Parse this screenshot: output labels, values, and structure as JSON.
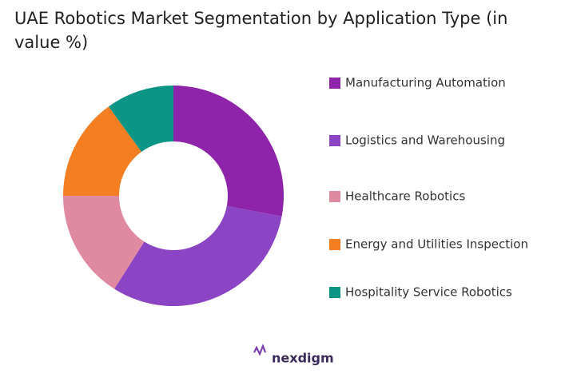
{
  "chart_data": {
    "type": "donut",
    "title": "UAE Robotics Market Segmentation by Application Type (in value %)",
    "categories": [
      "Manufacturing Automation",
      "Logistics and Warehousing",
      "Healthcare Robotics",
      "Energy and Utilities Inspection",
      "Hospitality Service Robotics"
    ],
    "values": [
      28,
      31,
      16,
      15,
      10
    ],
    "colors": [
      "#8e24aa",
      "#8b44c4",
      "#e08aa2",
      "#f47e22",
      "#0a9584"
    ]
  },
  "logo": "nexdigm"
}
